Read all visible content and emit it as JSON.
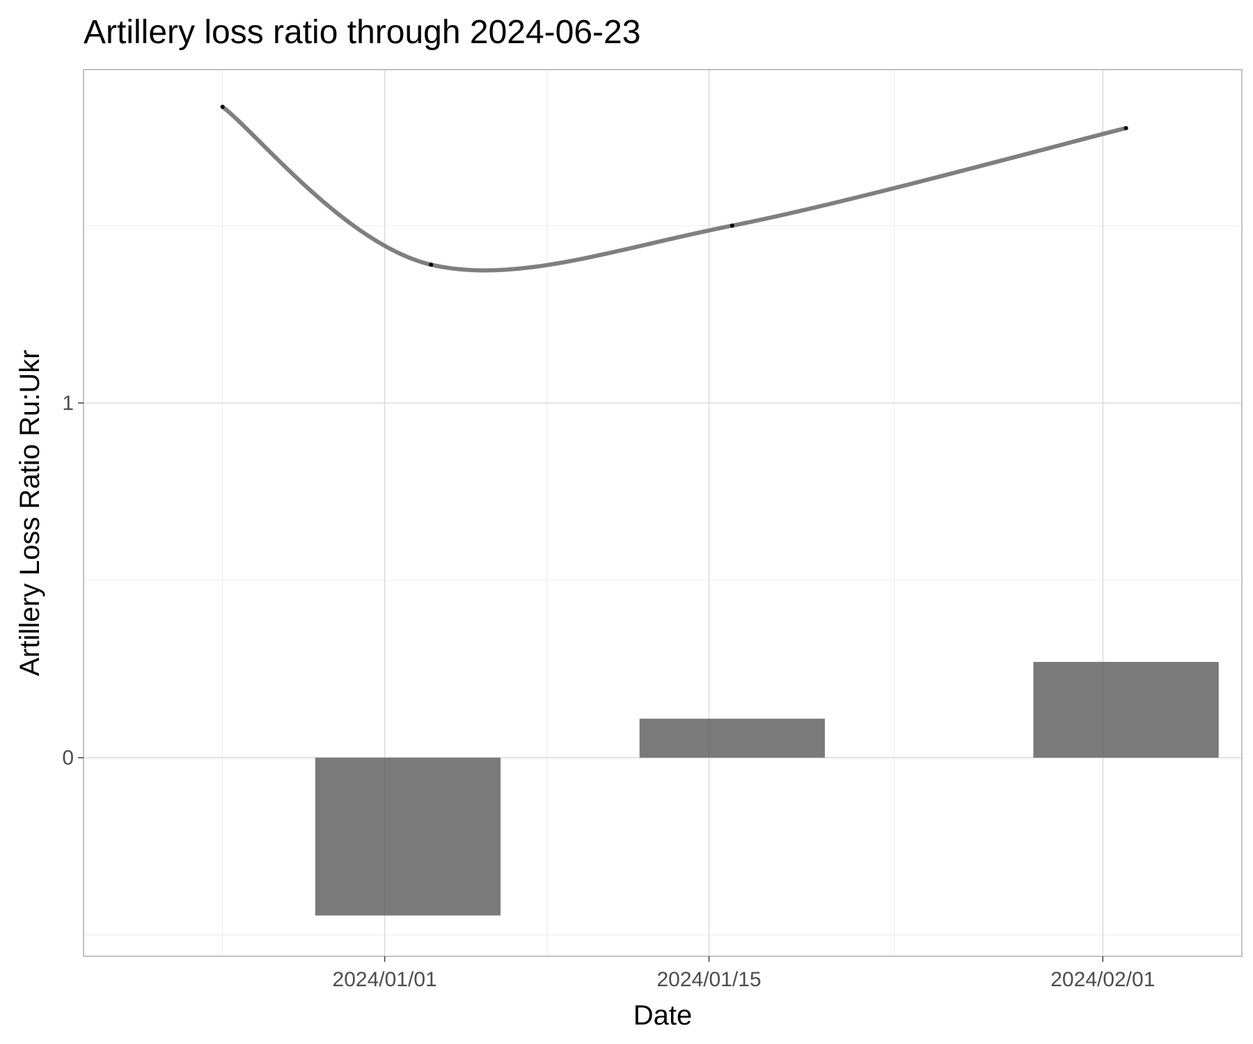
{
  "chart_data": {
    "type": "bar",
    "title": "Artillery loss ratio through 2024-06-23",
    "xlabel": "Date",
    "ylabel": "Artillery Loss Ratio Ru:Ukr",
    "x_type": "date",
    "xlim": [
      "2023-12-19",
      "2024-02-07"
    ],
    "ylim": [
      -0.56,
      1.94
    ],
    "x_ticks": [
      {
        "date": "2024-01-01",
        "label": "2024/01/01"
      },
      {
        "date": "2024-01-15",
        "label": "2024/01/15"
      },
      {
        "date": "2024-02-01",
        "label": "2024/02/01"
      }
    ],
    "x_minor_ticks": [
      "2023-12-25",
      "2024-01-08",
      "2024-01-23",
      "2024-02-08"
    ],
    "y_ticks": [
      {
        "value": 0,
        "label": "0"
      },
      {
        "value": 1,
        "label": "1"
      }
    ],
    "y_minor_ticks": [
      -0.5,
      0.5,
      1.5
    ],
    "grid": true,
    "bars": [
      {
        "x_start": "2023-12-29",
        "x_end": "2024-01-06",
        "value": -0.445
      },
      {
        "x_start": "2024-01-12",
        "x_end": "2024-01-20",
        "value": 0.11
      },
      {
        "x_start": "2024-01-29",
        "x_end": "2024-02-06",
        "value": 0.27
      }
    ],
    "points": [
      {
        "x": "2023-12-25",
        "y": 1.835
      },
      {
        "x": "2024-01-03",
        "y": 1.39
      },
      {
        "x": "2024-01-16",
        "y": 1.5
      },
      {
        "x": "2024-02-02",
        "y": 1.775
      }
    ],
    "smooth_line": true,
    "colors": {
      "bar": "#595959",
      "line": "#7f7f7f",
      "point": "#000000"
    }
  }
}
